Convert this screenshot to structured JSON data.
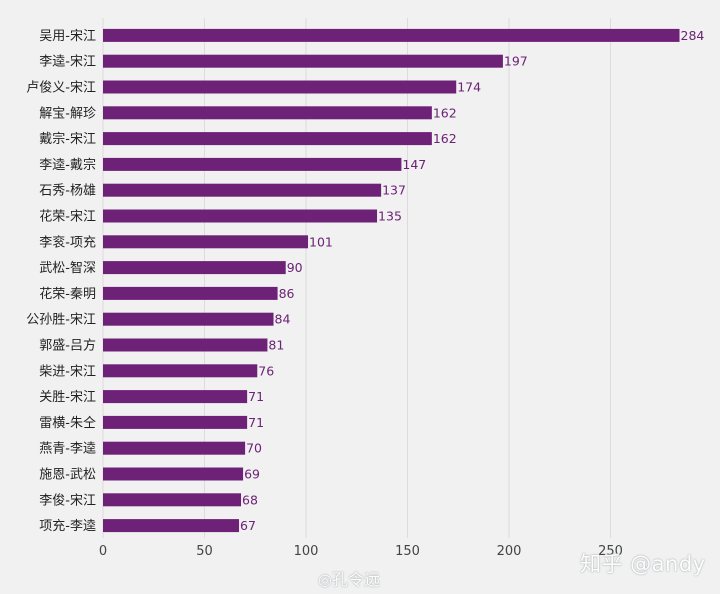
{
  "chart_data": {
    "type": "bar",
    "orientation": "horizontal",
    "categories": [
      "吴用-宋江",
      "李逵-宋江",
      "卢俊义-宋江",
      "解宝-解珍",
      "戴宗-宋江",
      "李逵-戴宗",
      "石秀-杨雄",
      "花荣-宋江",
      "李衮-项充",
      "武松-智深",
      "花荣-秦明",
      "公孙胜-宋江",
      "郭盛-吕方",
      "柴进-宋江",
      "关胜-宋江",
      "雷横-朱仝",
      "燕青-李逵",
      "施恩-武松",
      "李俊-宋江",
      "项充-李逵"
    ],
    "values": [
      284,
      197,
      174,
      162,
      162,
      147,
      137,
      135,
      101,
      90,
      86,
      84,
      81,
      76,
      71,
      71,
      70,
      69,
      68,
      67
    ],
    "xlim": [
      0,
      300
    ],
    "xticks": [
      0,
      50,
      100,
      150,
      200,
      250
    ],
    "grid": "vertical",
    "bar_color": "#6d2277",
    "label_color": "#6d2277",
    "title": "",
    "xlabel": "",
    "ylabel": ""
  },
  "watermarks": {
    "zhihu": "知乎 @andy",
    "weibo": "孔令远"
  }
}
